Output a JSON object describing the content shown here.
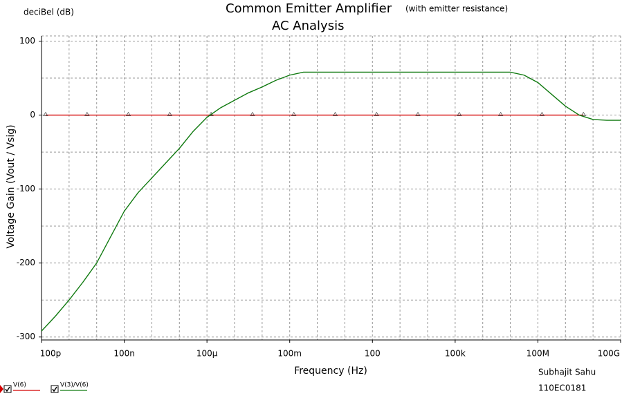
{
  "chart_data": {
    "type": "line",
    "title": "Common Emitter Amplifier",
    "subtitle": "(with emitter resistance)",
    "subtitle2": "AC Analysis",
    "y_unit_label": "deciBel (dB)",
    "y_label": "Voltage Gain (Vout  / Vsig)",
    "x_label": "Frequency (Hz)",
    "author": "Subhajit Sahu",
    "roll": "110EC0181",
    "xscale": "log",
    "xlim": [
      1e-10,
      100000000000.0
    ],
    "ylim": [
      -304,
      107
    ],
    "xticks": [
      {
        "value": 1e-10,
        "label": "100p"
      },
      {
        "value": 1e-07,
        "label": "100n"
      },
      {
        "value": 0.0001,
        "label": "100µ"
      },
      {
        "value": 0.1,
        "label": "100m"
      },
      100,
      {
        "value": 100000.0,
        "label": "100k"
      },
      {
        "value": 100000000.0,
        "label": "100M"
      },
      {
        "value": 100000000000.0,
        "label": "100G"
      }
    ],
    "xgrid": [
      1e-09,
      1e-08,
      1e-07,
      1e-06,
      1e-05,
      0.0001,
      0.001,
      0.01,
      0.1,
      1,
      10,
      100,
      1000,
      10000.0,
      100000.0,
      1000000.0,
      10000000.0,
      100000000.0,
      1000000000.0,
      10000000000.0
    ],
    "yticks": [
      100,
      0,
      -100,
      -200,
      -300
    ],
    "ygrid": [
      50,
      -50,
      -150,
      -250
    ],
    "grid": true,
    "series": [
      {
        "name": "V(6)",
        "color": "#d40000",
        "marker": "triangle",
        "x": [
          1.41e-10,
          4.47e-09,
          1.41e-07,
          4.47e-06,
          0.000141,
          0.00447,
          0.141,
          4.47,
          141,
          4467,
          141000.0,
          4470000.0,
          141000000.0,
          4470000000.0
        ],
        "values": [
          0,
          0,
          0,
          0,
          0,
          0,
          0,
          0,
          0,
          0,
          0,
          0,
          0,
          0
        ]
      },
      {
        "name": "V(3)/V(6)",
        "color": "#107a10",
        "x": [
          1e-10,
          3.16e-10,
          1e-09,
          3.16e-09,
          1e-08,
          3.16e-08,
          1e-07,
          3.16e-07,
          1e-06,
          3.16e-06,
          1e-05,
          3.16e-05,
          0.0001,
          0.000316,
          0.001,
          0.00316,
          0.01,
          0.0316,
          0.1,
          0.316,
          1,
          10000000.0,
          31600000.0,
          100000000.0,
          316000000.0,
          1000000000.0,
          3160000000.0,
          10000000000.0,
          31600000000.0,
          100000000000.0
        ],
        "values": [
          -292,
          -272,
          -250,
          -226,
          -200,
          -165,
          -130,
          -105,
          -85,
          -65,
          -45,
          -22,
          -3,
          10,
          20,
          30,
          38,
          47,
          54,
          58,
          58,
          58,
          54,
          44,
          28,
          12,
          0,
          -6,
          -7,
          -7
        ]
      }
    ]
  }
}
